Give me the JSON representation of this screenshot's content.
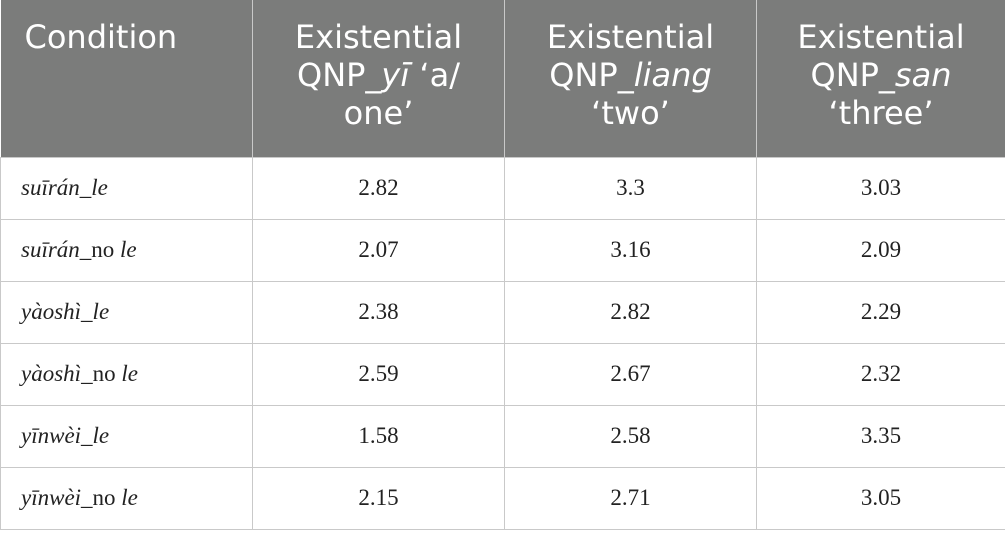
{
  "table": {
    "header": [
      [
        "Condition"
      ],
      [
        "Existential QNP_",
        "yī",
        " ‘a/ one’"
      ],
      [
        "Existential QNP_",
        "liang",
        " ‘two’"
      ],
      [
        "Existential QNP_",
        "san",
        " ‘three’"
      ]
    ],
    "rows": [
      [
        [
          "suīrán_le"
        ],
        2.82,
        3.3,
        3.03
      ],
      [
        [
          "suīrán",
          "_no ",
          "le"
        ],
        2.07,
        3.16,
        2.09
      ],
      [
        [
          "yàoshì_le"
        ],
        2.38,
        2.82,
        2.29
      ],
      [
        [
          "yàoshì",
          "_no ",
          "le"
        ],
        2.59,
        2.67,
        2.32
      ],
      [
        [
          "yīnwèi_le"
        ],
        1.58,
        2.58,
        3.35
      ],
      [
        [
          "yīnwèi",
          "_no ",
          "le"
        ],
        2.15,
        2.71,
        3.05
      ]
    ]
  }
}
